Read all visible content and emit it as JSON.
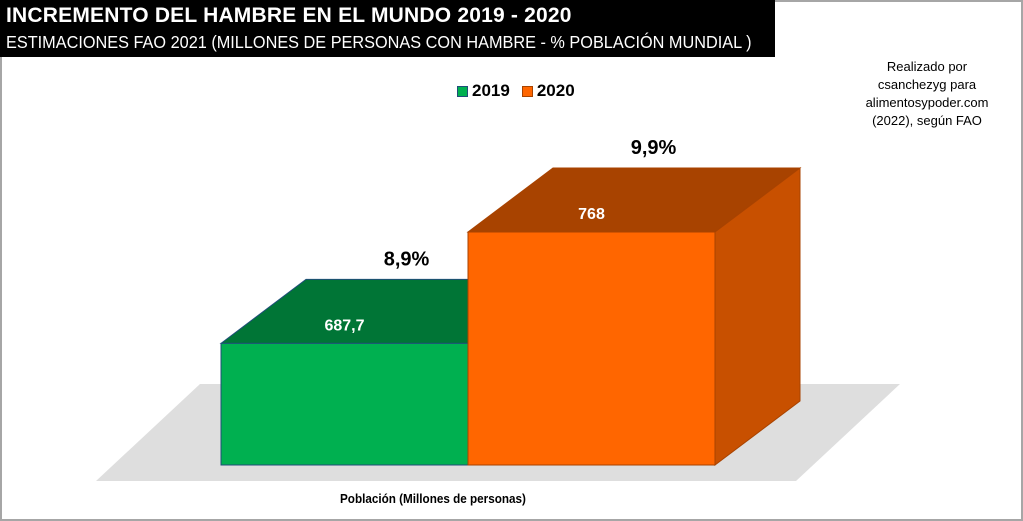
{
  "header": {
    "title": "INCREMENTO DEL HAMBRE EN EL MUNDO 2019 - 2020",
    "subtitle": "ESTIMACIONES FAO 2021 (MILLONES DE PERSONAS CON HAMBRE - % POBLACIÓN MUNDIAL )"
  },
  "credit": {
    "lines": [
      "Realizado por",
      "csanchezyg para",
      "alimentosypoder.com",
      "(2022), según FAO"
    ]
  },
  "chart_data": {
    "type": "bar",
    "style": "3d",
    "title": "INCREMENTO DEL HAMBRE EN EL MUNDO 2019 - 2020",
    "subtitle": "ESTIMACIONES FAO 2021 (MILLONES DE PERSONAS CON HAMBRE - % POBLACIÓN MUNDIAL )",
    "xlabel": "Población (Millones de personas)",
    "ylabel": "",
    "categories": [
      "Población (Millones de personas)"
    ],
    "series": [
      {
        "name": "2019",
        "values": [
          687.7
        ],
        "value_label": "687,7",
        "percent_label": "8,9%",
        "percent": 8.9,
        "color": "#00b050",
        "top_color": "#007536",
        "side_color": "#007536",
        "edge_color": "#1f4e79"
      },
      {
        "name": "2020",
        "values": [
          768
        ],
        "value_label": "768",
        "percent_label": "9,9%",
        "percent": 9.9,
        "color": "#ff6600",
        "top_color": "#a84300",
        "side_color": "#c85000",
        "edge_color": "#a84300"
      }
    ],
    "ylim": [
      600,
      800
    ],
    "grid": false,
    "legend": {
      "position": "top",
      "entries": [
        "2019",
        "2020"
      ]
    },
    "floor_color": "#dedede"
  }
}
